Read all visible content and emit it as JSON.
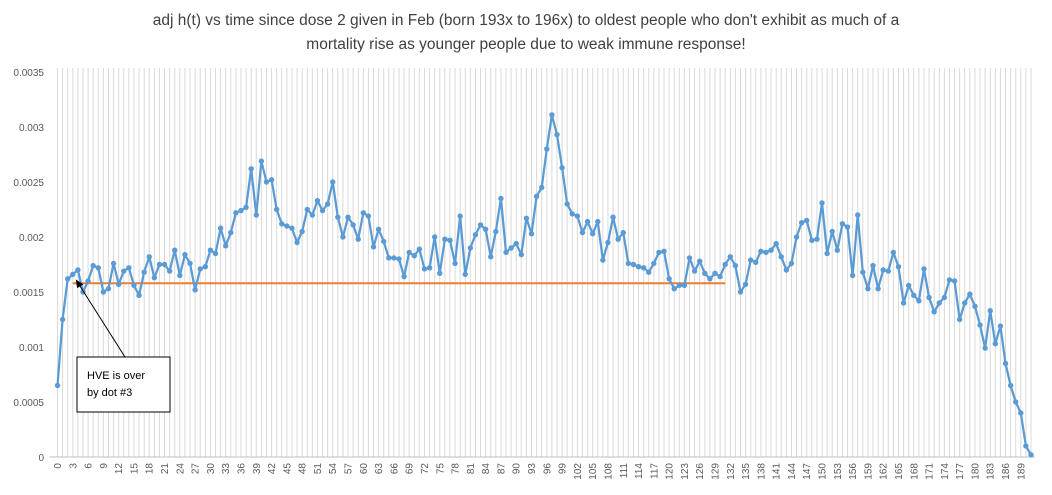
{
  "chart_data": {
    "type": "line",
    "title": "adj h(t) vs time since dose 2 given in Feb (born 193x to 196x) to oldest people who don't exhibit as much of a mortality rise as younger people due to weak immune response!",
    "title_lines": [
      "adj h(t) vs time since dose 2 given in Feb (born 193x to 196x) to oldest people who don't exhibit as much of a",
      "mortality rise as younger people due to weak immune response!"
    ],
    "xlabel": "",
    "ylabel": "",
    "ylim": [
      0,
      0.0035
    ],
    "xlim": [
      0,
      190
    ],
    "grid": {
      "vertical": true,
      "horizontal": false
    },
    "y_ticks": [
      "0",
      "0.0005",
      "0.001",
      "0.0015",
      "0.002",
      "0.0025",
      "0.003",
      "0.0035"
    ],
    "x_tick_step": 3,
    "colors": {
      "series": "#5B9BD5",
      "reference": "#ED7D31",
      "grid": "#D9D9D9",
      "axis": "#BFBFBF"
    },
    "series": [
      {
        "values": [
          0.00065,
          0.00125,
          0.00162,
          0.00166,
          0.0017,
          0.0015,
          0.0016,
          0.00174,
          0.00172,
          0.0015,
          0.00153,
          0.00176,
          0.00157,
          0.00169,
          0.00172,
          0.00156,
          0.00147,
          0.00168,
          0.00182,
          0.00163,
          0.00175,
          0.00175,
          0.00169,
          0.00188,
          0.00165,
          0.00184,
          0.00176,
          0.00152,
          0.00171,
          0.00173,
          0.00188,
          0.00185,
          0.00208,
          0.00192,
          0.00204,
          0.00222,
          0.00224,
          0.00227,
          0.00262,
          0.0022,
          0.00269,
          0.0025,
          0.00252,
          0.00225,
          0.00212,
          0.0021,
          0.00208,
          0.00195,
          0.00205,
          0.00225,
          0.0022,
          0.00233,
          0.00224,
          0.0023,
          0.0025,
          0.00218,
          0.002,
          0.00218,
          0.00211,
          0.00198,
          0.00222,
          0.00219,
          0.00191,
          0.00207,
          0.00196,
          0.00181,
          0.00181,
          0.0018,
          0.00164,
          0.00186,
          0.00183,
          0.00189,
          0.00171,
          0.00172,
          0.002,
          0.00167,
          0.00198,
          0.00197,
          0.00176,
          0.00219,
          0.00166,
          0.0019,
          0.00202,
          0.00211,
          0.00207,
          0.00182,
          0.00205,
          0.00235,
          0.00186,
          0.0019,
          0.00194,
          0.00184,
          0.00217,
          0.00203,
          0.00237,
          0.00245,
          0.0028,
          0.00311,
          0.00293,
          0.00263,
          0.0023,
          0.00221,
          0.00219,
          0.00204,
          0.00214,
          0.00203,
          0.00214,
          0.00179,
          0.00195,
          0.00218,
          0.00198,
          0.00204,
          0.00176,
          0.00175,
          0.00173,
          0.00172,
          0.00168,
          0.00176,
          0.00186,
          0.00187,
          0.00162,
          0.00153,
          0.00156,
          0.00156,
          0.00181,
          0.00169,
          0.00178,
          0.00167,
          0.00162,
          0.00167,
          0.00164,
          0.00175,
          0.00182,
          0.00174,
          0.0015,
          0.00157,
          0.00179,
          0.00177,
          0.00187,
          0.00186,
          0.00188,
          0.00194,
          0.00182,
          0.0017,
          0.00176,
          0.002,
          0.00213,
          0.00215,
          0.00197,
          0.00198,
          0.00231,
          0.00185,
          0.00205,
          0.00188,
          0.00212,
          0.00209,
          0.00165,
          0.0022,
          0.00168,
          0.00153,
          0.00174,
          0.00153,
          0.0017,
          0.00169,
          0.00186,
          0.00173,
          0.0014,
          0.00156,
          0.00147,
          0.00142,
          0.00171,
          0.00145,
          0.00132,
          0.0014,
          0.00145,
          0.00161,
          0.0016,
          0.00125,
          0.0014,
          0.00148,
          0.00137,
          0.0012,
          0.00099,
          0.00133,
          0.00103,
          0.00119,
          0.00085,
          0.00065,
          0.0005,
          0.0004,
          0.0001,
          2e-05
        ]
      }
    ],
    "reference_line": {
      "y": 0.00158,
      "x_start": 3,
      "x_end": 131
    },
    "annotation": {
      "lines": [
        "HVE is over",
        "by dot #3"
      ],
      "points_to_x": 3
    }
  }
}
